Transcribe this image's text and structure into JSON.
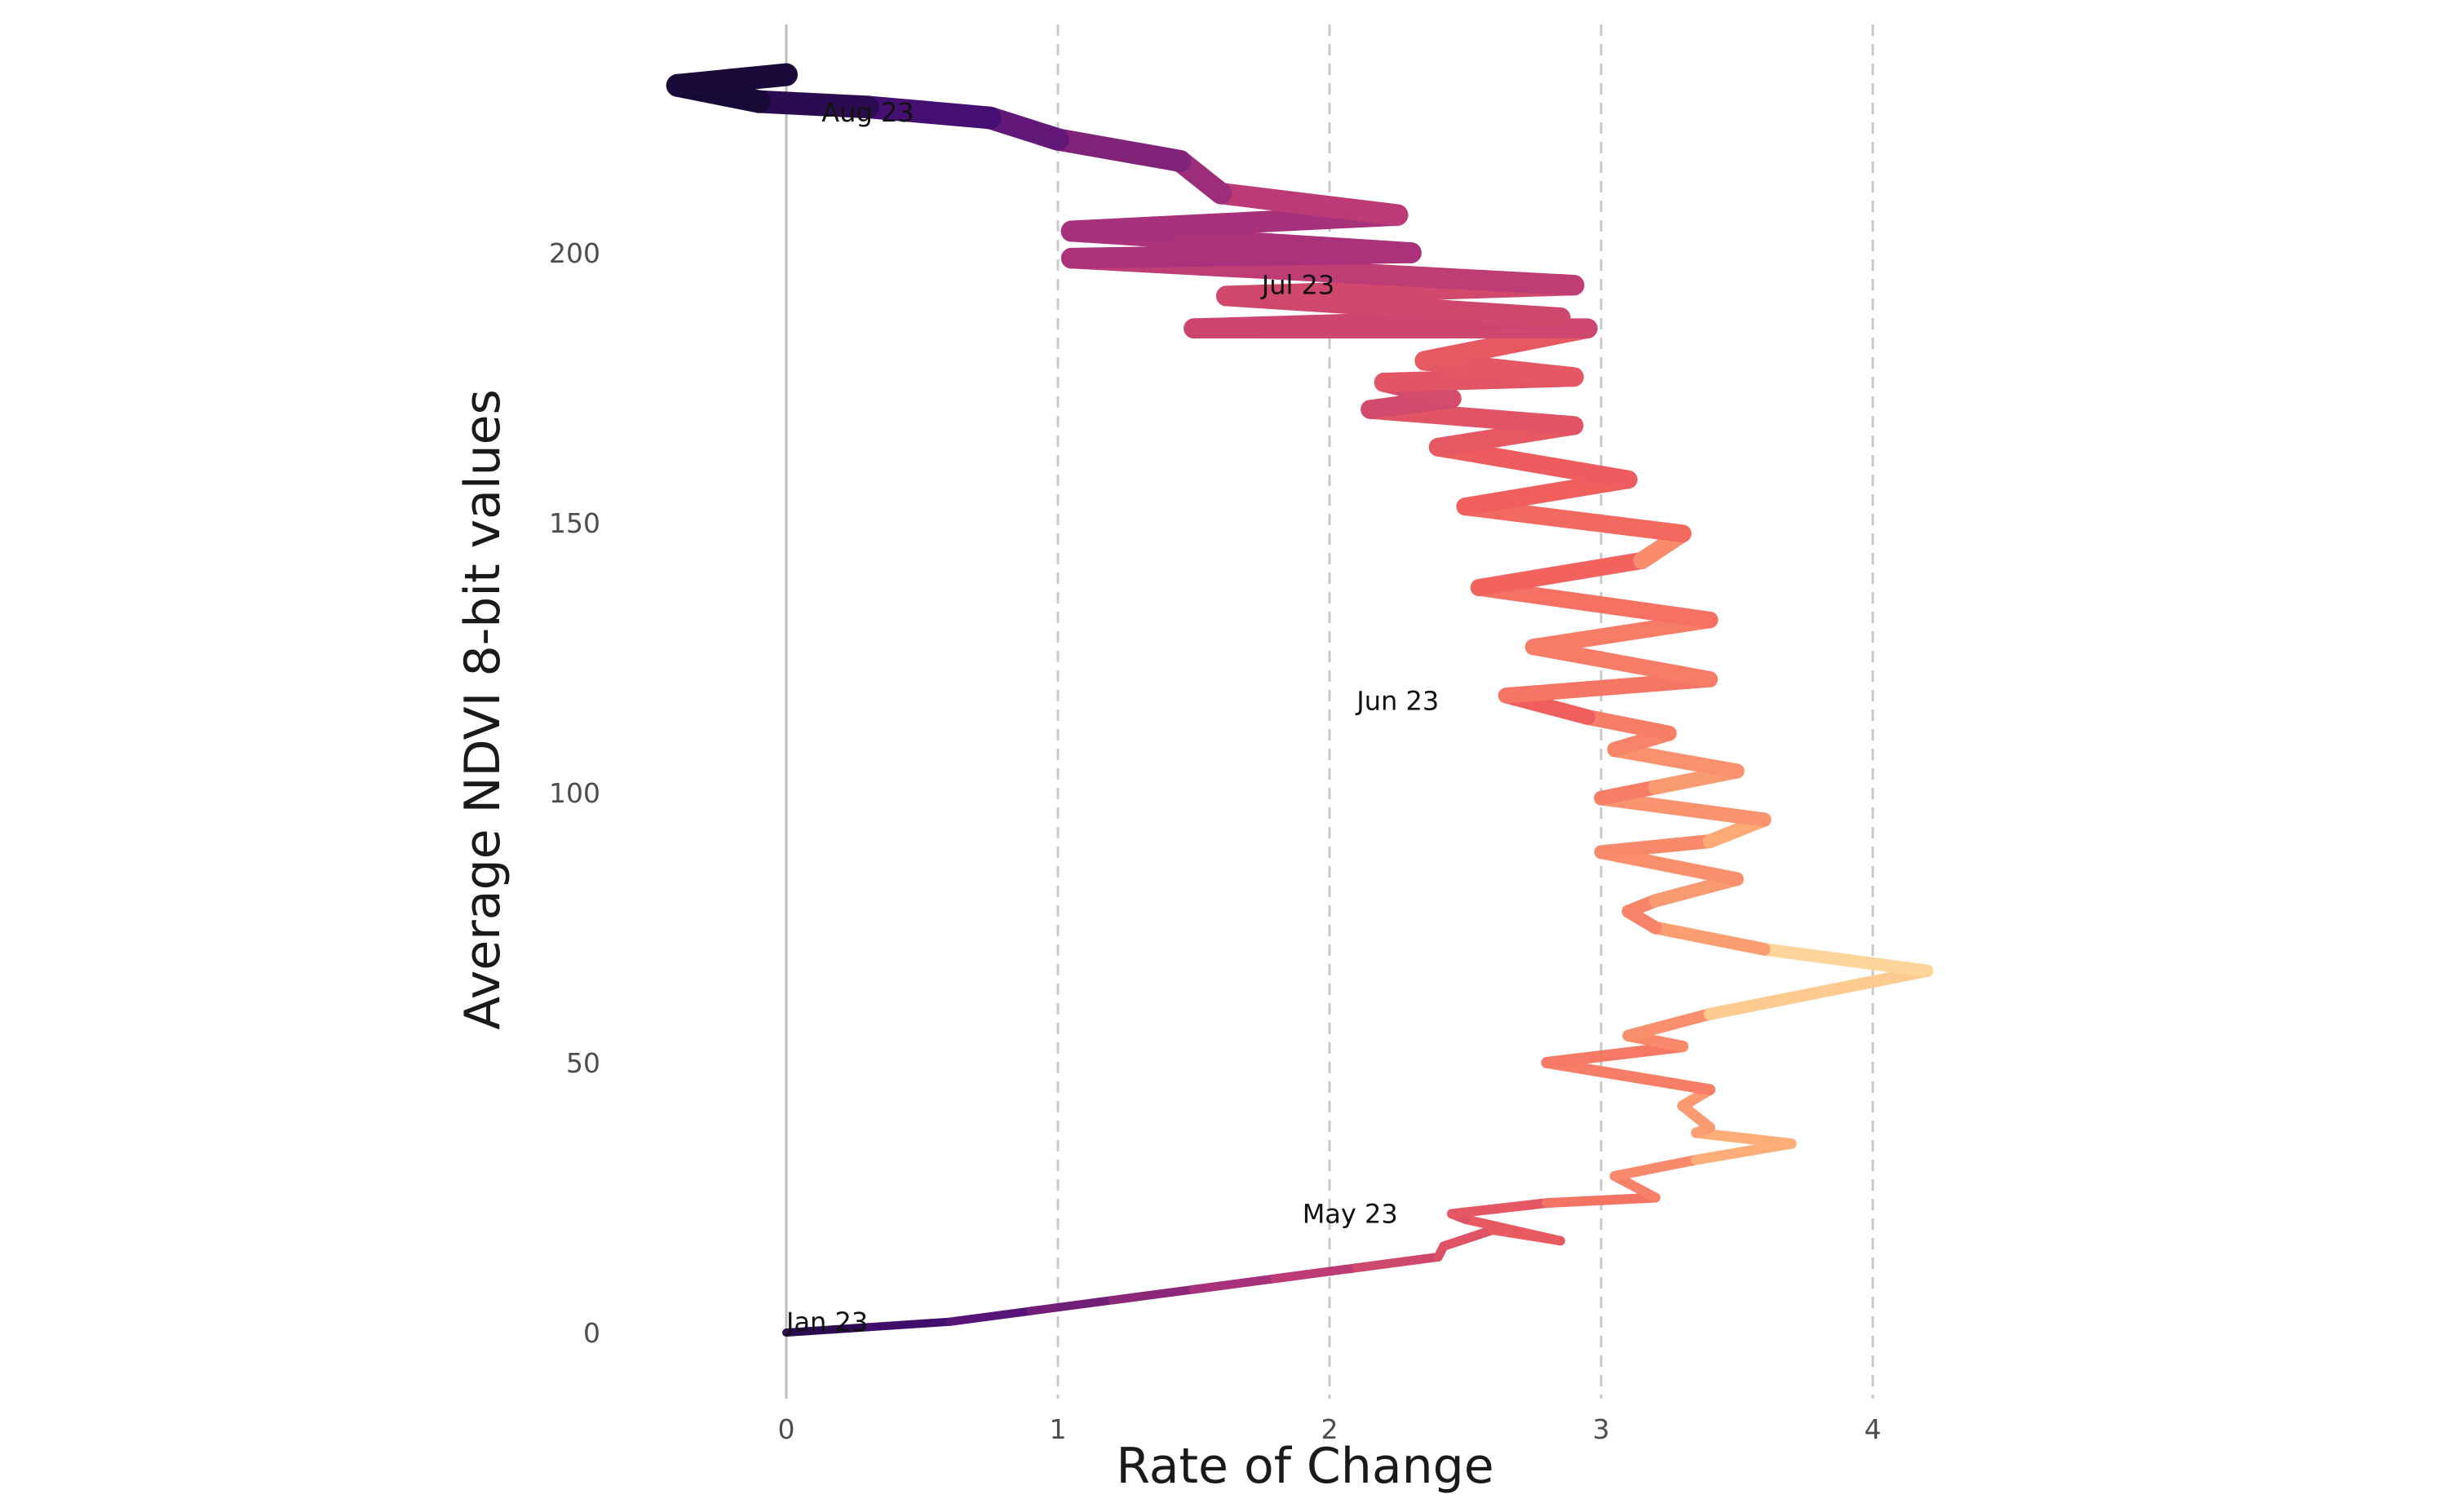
{
  "chart_data": {
    "type": "line",
    "title": "",
    "xlabel": "Rate of Change",
    "ylabel": "Average NDVI 8-bit values",
    "xlim": [
      -0.5,
      4.6
    ],
    "ylim": [
      -14,
      243
    ],
    "x_ticks": [
      0,
      1,
      2,
      3,
      4
    ],
    "y_ticks": [
      0,
      50,
      100,
      150,
      200
    ],
    "grid": {
      "vertical_dashed_at_x_ticks": true,
      "horizontal": false,
      "zero_line": "solid vertical at x=0"
    },
    "legend": "none",
    "color_scale": "magma (dark purple -> magenta -> orange -> light yellow), mapped to rate of change",
    "colors": {
      "low": "#0d0829",
      "mid_low": "#4a1078",
      "mid": "#b5367a",
      "mid_high": "#f1605d",
      "high": "#feb078",
      "max": "#fcf6b8"
    },
    "annotations": [
      {
        "text": "Jan 23",
        "x": 0.0,
        "y": 2
      },
      {
        "text": "May 23",
        "x": 1.9,
        "y": 22
      },
      {
        "text": "Jun 23",
        "x": 2.1,
        "y": 117
      },
      {
        "text": "Jul 23",
        "x": 1.75,
        "y": 194
      },
      {
        "text": "Aug 23",
        "x": 0.13,
        "y": 226
      }
    ],
    "series": [
      {
        "x": [
          0.0,
          0.3,
          0.6,
          0.9,
          1.2,
          1.5,
          1.8,
          2.1,
          2.4,
          2.42,
          2.6,
          2.85,
          2.5,
          2.45,
          2.8,
          3.2,
          3.05,
          3.35,
          3.7,
          3.35,
          3.4,
          3.3,
          3.4,
          2.8,
          3.3,
          3.1,
          3.4,
          4.2,
          3.6,
          3.2,
          3.1,
          3.2,
          3.5,
          3.0,
          3.4,
          3.6,
          3.0,
          3.2,
          3.5,
          3.05,
          3.25,
          2.95,
          2.65,
          3.4,
          2.75,
          3.4,
          2.55,
          3.15,
          3.3,
          2.5,
          3.1,
          2.4,
          2.9,
          2.15,
          2.45,
          2.2,
          2.9,
          2.35,
          2.95,
          1.5,
          2.85,
          1.62,
          2.9,
          1.05,
          2.3,
          1.05,
          2.25,
          1.6,
          1.45,
          1.0,
          0.75,
          0.3,
          -0.1,
          -0.4,
          0.0
        ],
        "y": [
          0,
          1,
          2,
          4,
          6,
          8,
          10,
          12,
          14,
          16,
          19,
          17,
          21,
          22,
          24,
          25,
          29,
          32,
          35,
          37,
          38,
          42,
          45,
          50,
          53,
          55,
          59,
          67,
          71,
          75,
          78,
          80,
          84,
          89,
          91,
          95,
          99,
          101,
          104,
          108,
          111,
          114,
          118,
          121,
          127,
          132,
          138,
          143,
          148,
          153,
          158,
          164,
          168,
          171,
          173,
          176,
          177,
          180,
          186,
          186,
          188,
          192,
          194,
          199,
          200,
          204,
          207,
          211,
          217,
          221,
          225,
          227,
          228,
          231,
          233
        ]
      }
    ]
  }
}
